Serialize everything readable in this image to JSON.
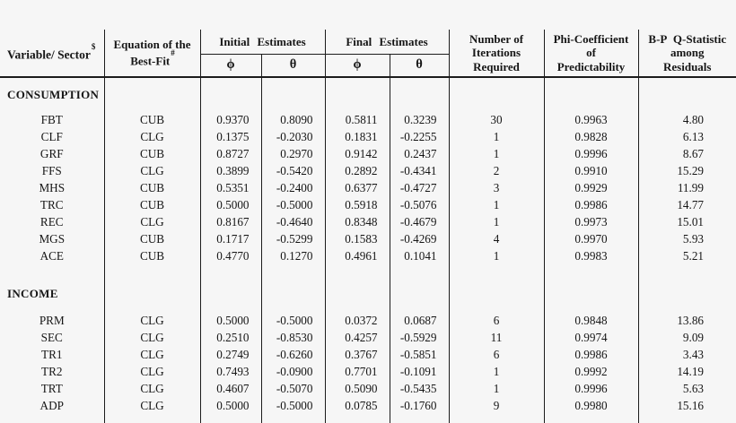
{
  "colors": {
    "background": "#f6f6f6",
    "text": "#161616",
    "rule": "#1c1c1c"
  },
  "table": {
    "header": {
      "variable_sector": {
        "label": "Variable/ Sector",
        "sup": "$"
      },
      "equation": {
        "line1": "Equation of the",
        "line2": "Best-Fit",
        "sup": "#"
      },
      "initial_estimates": "Initial Estimates",
      "final_estimates": "Final Estimates",
      "phi_symbol": "ϕ",
      "theta_symbol": "θ",
      "iterations": {
        "line1": "Number of",
        "line2": "Iterations",
        "line3": "Required"
      },
      "phi_coefficient": {
        "line1": "Phi-Coefficient",
        "line2": "of",
        "line3": "Predictability"
      },
      "bp_q": {
        "line1": "B-P Q-Statistic",
        "line2": "among",
        "line3": "Residuals"
      }
    },
    "sections": [
      {
        "name": "CONSUMPTION",
        "rows": [
          {
            "sector": "FBT",
            "equation": "CUB",
            "initial_phi": "0.9370",
            "initial_theta": "0.8090",
            "final_phi": "0.5811",
            "final_theta": "0.3239",
            "iterations": "30",
            "phi_coefficient": "0.9963",
            "bp_q": "4.80"
          },
          {
            "sector": "CLF",
            "equation": "CLG",
            "initial_phi": "0.1375",
            "initial_theta": "-0.2030",
            "final_phi": "0.1831",
            "final_theta": "-0.2255",
            "iterations": "1",
            "phi_coefficient": "0.9828",
            "bp_q": "6.13"
          },
          {
            "sector": "GRF",
            "equation": "CUB",
            "initial_phi": "0.8727",
            "initial_theta": "0.2970",
            "final_phi": "0.9142",
            "final_theta": "0.2437",
            "iterations": "1",
            "phi_coefficient": "0.9996",
            "bp_q": "8.67"
          },
          {
            "sector": "FFS",
            "equation": "CLG",
            "initial_phi": "0.3899",
            "initial_theta": "-0.5420",
            "final_phi": "0.2892",
            "final_theta": "-0.4341",
            "iterations": "2",
            "phi_coefficient": "0.9910",
            "bp_q": "15.29"
          },
          {
            "sector": "MHS",
            "equation": "CUB",
            "initial_phi": "0.5351",
            "initial_theta": "-0.2400",
            "final_phi": "0.6377",
            "final_theta": "-0.4727",
            "iterations": "3",
            "phi_coefficient": "0.9929",
            "bp_q": "11.99"
          },
          {
            "sector": "TRC",
            "equation": "CUB",
            "initial_phi": "0.5000",
            "initial_theta": "-0.5000",
            "final_phi": "0.5918",
            "final_theta": "-0.5076",
            "iterations": "1",
            "phi_coefficient": "0.9986",
            "bp_q": "14.77"
          },
          {
            "sector": "REC",
            "equation": "CLG",
            "initial_phi": "0.8167",
            "initial_theta": "-0.4640",
            "final_phi": "0.8348",
            "final_theta": "-0.4679",
            "iterations": "1",
            "phi_coefficient": "0.9973",
            "bp_q": "15.01"
          },
          {
            "sector": "MGS",
            "equation": "CUB",
            "initial_phi": "0.1717",
            "initial_theta": "-0.5299",
            "final_phi": "0.1583",
            "final_theta": "-0.4269",
            "iterations": "4",
            "phi_coefficient": "0.9970",
            "bp_q": "5.93"
          },
          {
            "sector": "ACE",
            "equation": "CUB",
            "initial_phi": "0.4770",
            "initial_theta": "0.1270",
            "final_phi": "0.4961",
            "final_theta": "0.1041",
            "iterations": "1",
            "phi_coefficient": "0.9983",
            "bp_q": "5.21"
          }
        ]
      },
      {
        "name": "INCOME",
        "rows": [
          {
            "sector": "PRM",
            "equation": "CLG",
            "initial_phi": "0.5000",
            "initial_theta": "-0.5000",
            "final_phi": "0.0372",
            "final_theta": "0.0687",
            "iterations": "6",
            "phi_coefficient": "0.9848",
            "bp_q": "13.86"
          },
          {
            "sector": "SEC",
            "equation": "CLG",
            "initial_phi": "0.2510",
            "initial_theta": "-0.8530",
            "final_phi": "0.4257",
            "final_theta": "-0.5929",
            "iterations": "11",
            "phi_coefficient": "0.9974",
            "bp_q": "9.09"
          },
          {
            "sector": "TR1",
            "equation": "CLG",
            "initial_phi": "0.2749",
            "initial_theta": "-0.6260",
            "final_phi": "0.3767",
            "final_theta": "-0.5851",
            "iterations": "6",
            "phi_coefficient": "0.9986",
            "bp_q": "3.43"
          },
          {
            "sector": "TR2",
            "equation": "CLG",
            "initial_phi": "0.7493",
            "initial_theta": "-0.0900",
            "final_phi": "0.7701",
            "final_theta": "-0.1091",
            "iterations": "1",
            "phi_coefficient": "0.9992",
            "bp_q": "14.19"
          },
          {
            "sector": "TRT",
            "equation": "CLG",
            "initial_phi": "0.4607",
            "initial_theta": "-0.5070",
            "final_phi": "0.5090",
            "final_theta": "-0.5435",
            "iterations": "1",
            "phi_coefficient": "0.9996",
            "bp_q": "5.63"
          },
          {
            "sector": "ADP",
            "equation": "CLG",
            "initial_phi": "0.5000",
            "initial_theta": "-0.5000",
            "final_phi": "0.0785",
            "final_theta": "-0.1760",
            "iterations": "9",
            "phi_coefficient": "0.9980",
            "bp_q": "15.16"
          }
        ]
      }
    ]
  }
}
